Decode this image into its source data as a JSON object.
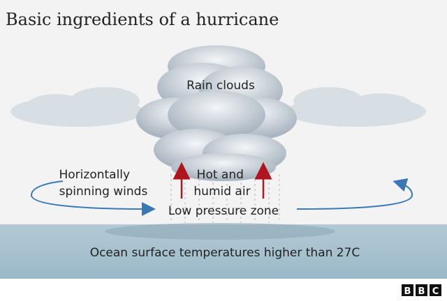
{
  "header": {
    "title": "Basic ingredients of a hurricane"
  },
  "labels": {
    "rain_clouds": "Rain clouds",
    "winds": [
      "Horizontally",
      "spinning winds"
    ],
    "hot_air": [
      "Hot and",
      "humid air"
    ],
    "low_pressure": "Low pressure zone",
    "ocean": "Ocean surface temperatures higher than 27C"
  },
  "logo": [
    "B",
    "B",
    "C"
  ]
}
